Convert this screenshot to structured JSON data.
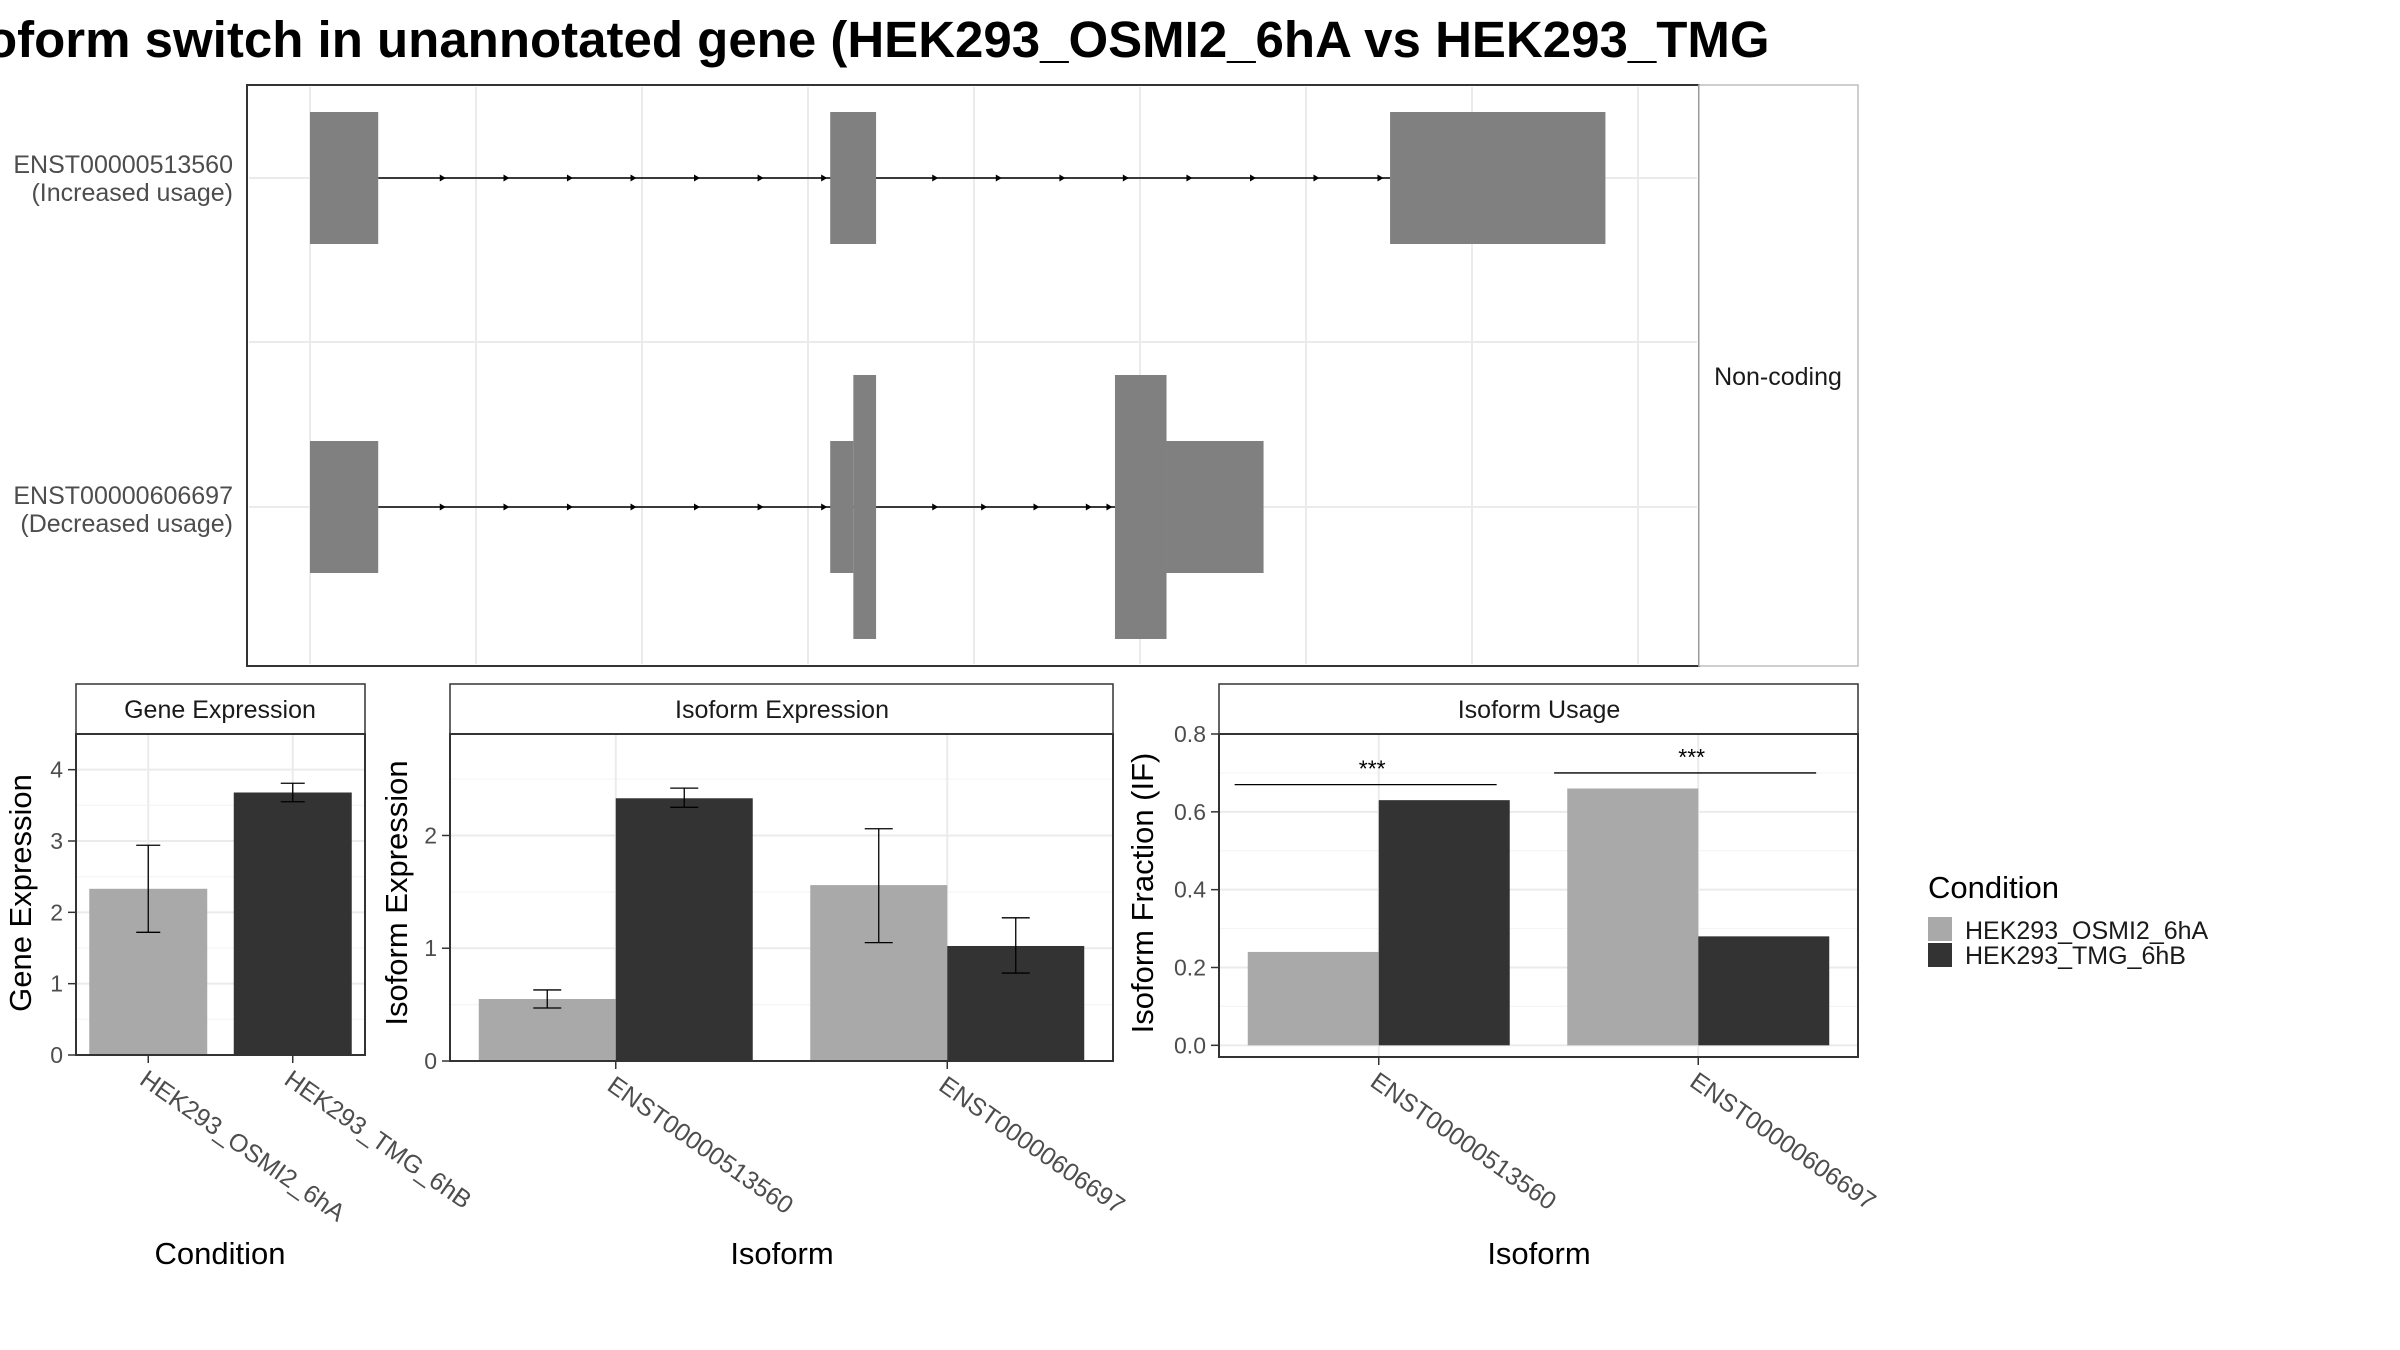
{
  "title": "oform switch in unannotated gene (HEK293_OSMI2_6hA vs HEK293_TMG",
  "colors": {
    "condition_a": "#a9a9a9",
    "condition_b": "#333333",
    "exon": "#808080",
    "grid": "#ebebeb",
    "panel_border": "#333333",
    "strip_bg": "#ffffff"
  },
  "structure_panel": {
    "strip_label": "Non-coding",
    "tracks": [
      {
        "id": "ENST00000513560",
        "label_line1": "ENST00000513560",
        "label_line2": "(Increased usage)",
        "exons": [
          {
            "start": 0.0,
            "end": 0.0516,
            "height": "utr"
          },
          {
            "start": 0.3935,
            "end": 0.4282,
            "height": "utr"
          },
          {
            "start": 0.817,
            "end": 0.9799,
            "height": "utr"
          }
        ],
        "arrows": [
          0.1027,
          0.1509,
          0.1989,
          0.247,
          0.295,
          0.3431,
          0.3912,
          0.4752,
          0.5233,
          0.5714,
          0.6194,
          0.6675,
          0.7156,
          0.7636,
          0.812
        ]
      },
      {
        "id": "ENST00000606697",
        "label_line1": "ENST00000606697",
        "label_line2": "(Decreased usage)",
        "exons": [
          {
            "start": 0.0,
            "end": 0.0516,
            "height": "utr"
          },
          {
            "start": 0.3935,
            "end": 0.411,
            "height": "utr"
          },
          {
            "start": 0.411,
            "end": 0.4282,
            "height": "cds"
          },
          {
            "start": 0.6089,
            "end": 0.6479,
            "height": "cds"
          },
          {
            "start": 0.6479,
            "end": 0.7213,
            "height": "utr"
          }
        ],
        "arrows": [
          0.1027,
          0.1509,
          0.1989,
          0.247,
          0.295,
          0.3431,
          0.3912,
          0.4752,
          0.5122,
          0.5518,
          0.5914,
          0.607
        ]
      }
    ]
  },
  "panels": {
    "gene": {
      "strip": "Gene Expression",
      "ylabel": "Gene Expression",
      "xlabel": "Condition"
    },
    "iso_exp": {
      "strip": "Isoform Expression",
      "ylabel": "Isoform Expression",
      "xlabel": "Isoform"
    },
    "iso_use": {
      "strip": "Isoform Usage",
      "ylabel": "Isoform Fraction (IF)",
      "xlabel": "Isoform"
    }
  },
  "legend": {
    "title": "Condition",
    "items": [
      "HEK293_OSMI2_6hA",
      "HEK293_TMG_6hB"
    ]
  },
  "chart_data": [
    {
      "type": "bar",
      "title": "Gene Expression",
      "xlabel": "Condition",
      "ylabel": "Gene Expression",
      "categories": [
        "HEK293_OSMI2_6hA",
        "HEK293_TMG_6hB"
      ],
      "values": [
        2.33,
        3.68
      ],
      "error": [
        [
          1.72,
          2.94
        ],
        [
          3.55,
          3.81
        ]
      ],
      "ylim": [
        0,
        4.5
      ],
      "yticks": [
        0,
        1,
        2,
        3,
        4
      ]
    },
    {
      "type": "bar",
      "title": "Isoform Expression",
      "xlabel": "Isoform",
      "ylabel": "Isoform Expression",
      "categories": [
        "ENST00000513560",
        "ENST00000606697"
      ],
      "series": [
        {
          "name": "HEK293_OSMI2_6hA",
          "values": [
            0.55,
            1.56
          ],
          "error": [
            [
              0.47,
              0.63
            ],
            [
              1.05,
              2.06
            ]
          ]
        },
        {
          "name": "HEK293_TMG_6hB",
          "values": [
            2.33,
            1.02
          ],
          "error": [
            [
              2.25,
              2.42
            ],
            [
              0.78,
              1.27
            ]
          ]
        }
      ],
      "ylim": [
        0,
        2.9
      ],
      "yticks": [
        0,
        1,
        2
      ]
    },
    {
      "type": "bar",
      "title": "Isoform Usage",
      "xlabel": "Isoform",
      "ylabel": "Isoform Fraction (IF)",
      "categories": [
        "ENST00000513560",
        "ENST00000606697"
      ],
      "series": [
        {
          "name": "HEK293_OSMI2_6hA",
          "values": [
            0.24,
            0.66
          ]
        },
        {
          "name": "HEK293_TMG_6hB",
          "values": [
            0.63,
            0.28
          ]
        }
      ],
      "significance": [
        {
          "category": "ENST00000513560",
          "label": "***",
          "y": 0.67
        },
        {
          "category": "ENST00000606697",
          "label": "***",
          "y": 0.7
        }
      ],
      "ylim": [
        -0.03,
        0.8
      ],
      "yticks": [
        0.0,
        0.2,
        0.4,
        0.6,
        0.8
      ],
      "ytick_labels": [
        "0.0",
        "0.2",
        "0.4",
        "0.6",
        "0.8"
      ]
    }
  ]
}
